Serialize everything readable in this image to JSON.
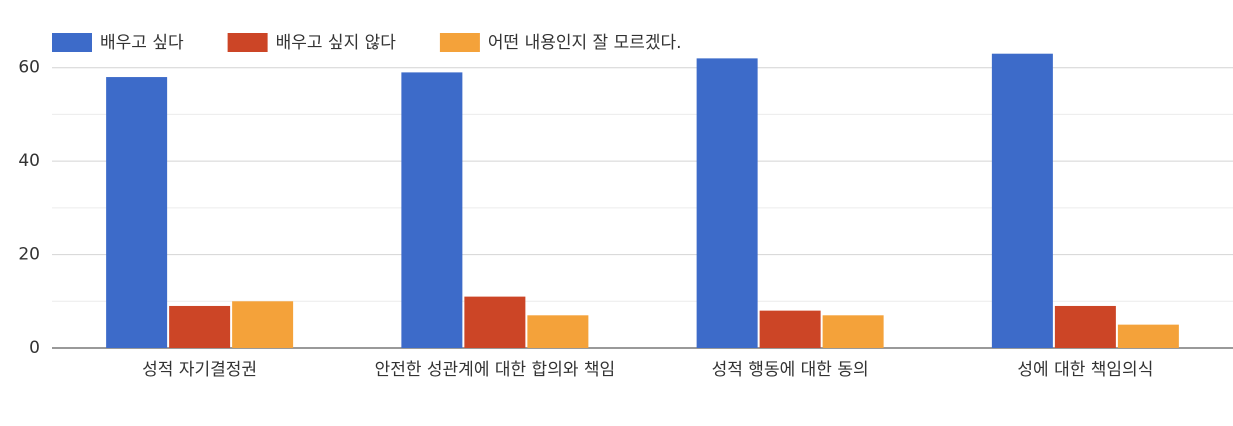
{
  "chart_data": {
    "type": "bar",
    "categories": [
      "성적 자기결정권",
      "안전한 성관계에 대한 합의와 책임",
      "성적 행동에 대한 동의",
      "성에 대한 책임의식"
    ],
    "series": [
      {
        "name": "배우고 싶다",
        "color": "#3d6bc9",
        "values": [
          58,
          59,
          62,
          63
        ]
      },
      {
        "name": "배우고 싶지 않다",
        "color": "#cc4526",
        "values": [
          9,
          11,
          8,
          9
        ]
      },
      {
        "name": "어떤 내용인지 잘 모르겠다.",
        "color": "#f4a23a",
        "values": [
          10,
          7,
          7,
          5
        ]
      }
    ],
    "ylim": [
      0,
      70
    ],
    "yticks": [
      0,
      20,
      40,
      60
    ],
    "minor_yticks": [
      10,
      30,
      50
    ],
    "grid": true,
    "legend": "top-left"
  }
}
